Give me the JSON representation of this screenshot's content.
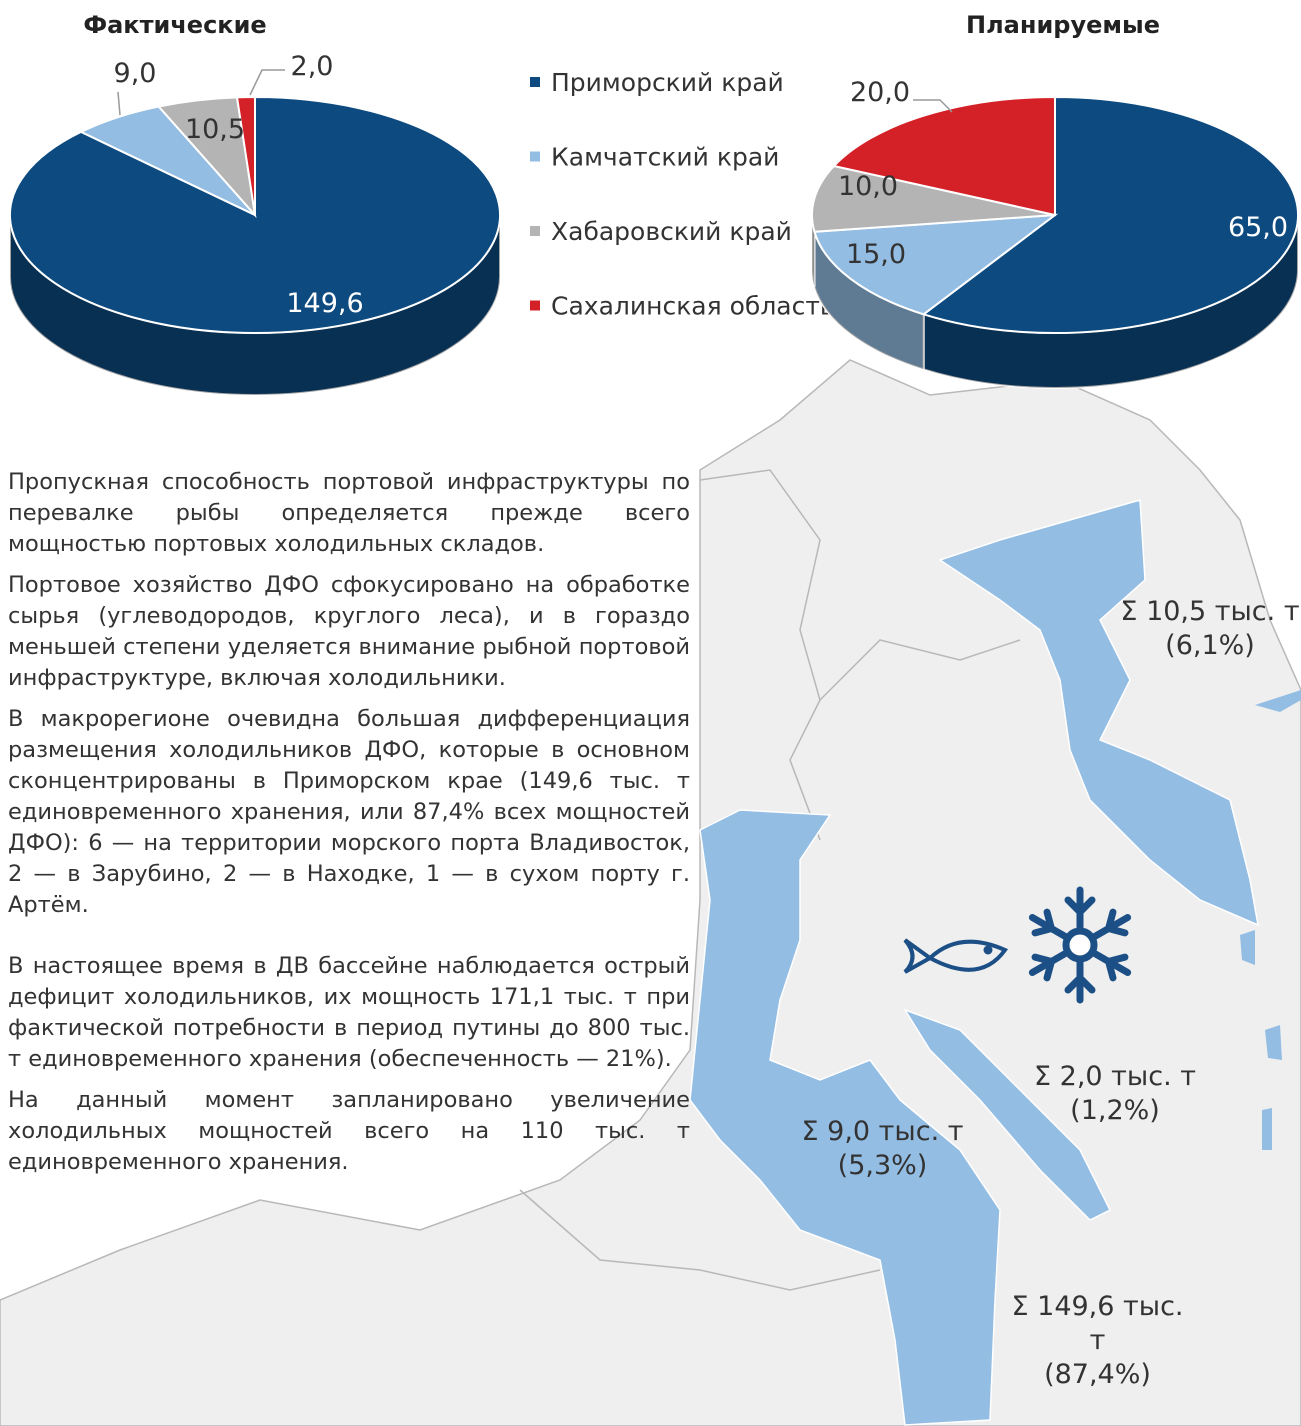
{
  "chart_data": [
    {
      "type": "pie",
      "title": "Фактические",
      "values": [
        149.6,
        10.5,
        9.0,
        2.0
      ],
      "value_labels": [
        "149,6",
        "10,5",
        "9,0",
        "2,0"
      ]
    },
    {
      "type": "pie",
      "title": "Планируемые",
      "values": [
        65.0,
        15.0,
        10.0,
        20.0
      ],
      "value_labels": [
        "65,0",
        "15,0",
        "10,0",
        "20,0"
      ]
    }
  ],
  "legend": {
    "categories": [
      "Приморский край",
      "Камчатский край",
      "Хабаровский край",
      "Сахалинская область"
    ],
    "colors": [
      "#0d4a80",
      "#93bde3",
      "#b4b4b4",
      "#d42027"
    ]
  },
  "paragraphs": [
    "Пропускная способность портовой инфраструктуры по перевалке рыбы определяется прежде всего мощностью портовых холодильных складов.",
    "Портовое хозяйство ДФО сфокусировано на обработке сырья (углеводородов, круглого леса), и в гораздо меньшей степени уделяется внимание рыбной портовой инфраструктуре, включая холодильники.",
    "В макрорегионе очевидна большая дифференциация размещения холодильников ДФО, которые в основном сконцентрированы в Приморском крае (149,6 тыс. т единовременного хранения, или 87,4% всех мощностей ДФО): 6 — на территории морского порта Владивосток, 2 — в Зарубино, 2 — в Находке, 1 — в сухом порту г. Артём.",
    "В настоящее время в ДВ бассейне наблюдается острый дефицит холодильников, их мощность 171,1 тыс. т при фактической потребности в период путины до 800 тыс. т единовременного хранения (обеспеченность — 21%).",
    "На данный момент запланировано увеличение холодильных мощностей всего на 110 тыс. т единовременного хранения."
  ],
  "map_labels": [
    {
      "sum": "Σ 10,5 тыс. т",
      "share": "(6,1%)"
    },
    {
      "sum": "Σ 2,0 тыс. т",
      "share": "(1,2%)"
    },
    {
      "sum": "Σ 9,0 тыс. т",
      "share": "(5,3%)"
    },
    {
      "sum": "Σ 149,6 тыс. т",
      "share": "(87,4%)"
    }
  ]
}
